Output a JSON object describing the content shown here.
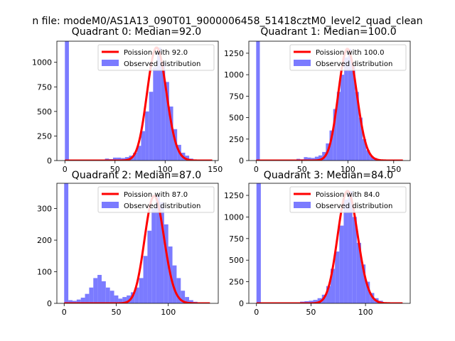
{
  "suptitle": "n file: modeM0/AS1A13_090T01_9000006458_51418cztM0_level2_quad_clean",
  "colors": {
    "hist": "#7b7bff",
    "curve": "#ff0000",
    "axis": "#000000",
    "legend_border": "#d0d0d0"
  },
  "chart_data": [
    {
      "type": "bar",
      "title": "Quadrant 0: Median=92.0",
      "xlim": [
        -8,
        153
      ],
      "ylim": [
        0,
        1215
      ],
      "xticks": [
        0,
        50,
        100,
        150
      ],
      "yticks": [
        0,
        250,
        500,
        750,
        1000
      ],
      "legend": {
        "position": "top-right",
        "curve_label": "Poission with 92.0",
        "hist_label": "Observed distribution"
      },
      "poisson_mean": 92.0,
      "curve_range": [
        0,
        147
      ],
      "bin_width": 4,
      "hist_x": [
        0,
        40,
        44,
        48,
        52,
        56,
        60,
        64,
        68,
        72,
        76,
        80,
        84,
        88,
        92,
        96,
        100,
        104,
        108,
        112,
        116,
        120,
        124,
        128
      ],
      "hist_y": [
        1215,
        20,
        15,
        30,
        30,
        25,
        35,
        50,
        80,
        150,
        300,
        500,
        700,
        950,
        1150,
        1000,
        800,
        550,
        320,
        160,
        80,
        50,
        20,
        10
      ]
    },
    {
      "type": "bar",
      "title": "Quadrant 1: Median=100.0",
      "xlim": [
        -8,
        168
      ],
      "ylim": [
        0,
        1390
      ],
      "xticks": [
        0,
        50,
        100,
        150
      ],
      "yticks": [
        0,
        250,
        500,
        750,
        1000,
        1250
      ],
      "legend": {
        "position": "top-right",
        "curve_label": "Poission with 100.0",
        "hist_label": "Observed distribution"
      },
      "poisson_mean": 100.0,
      "curve_range": [
        0,
        160
      ],
      "bin_width": 4,
      "hist_x": [
        0,
        44,
        48,
        52,
        56,
        60,
        64,
        68,
        72,
        76,
        80,
        84,
        88,
        92,
        96,
        100,
        104,
        108,
        112,
        116,
        120,
        124,
        128,
        132,
        136
      ],
      "hist_y": [
        1390,
        20,
        15,
        40,
        35,
        30,
        45,
        60,
        100,
        200,
        350,
        600,
        800,
        1000,
        1200,
        1300,
        1100,
        800,
        500,
        250,
        120,
        50,
        30,
        15,
        10
      ]
    },
    {
      "type": "bar",
      "title": "Quadrant 2: Median=87.0",
      "xlim": [
        -7,
        148
      ],
      "ylim": [
        0,
        380
      ],
      "xticks": [
        0,
        50,
        100
      ],
      "yticks": [
        0,
        100,
        200,
        300
      ],
      "legend": {
        "position": "top-right",
        "curve_label": "Poission with 87.0",
        "hist_label": "Observed distribution"
      },
      "poisson_mean": 87.0,
      "curve_range": [
        0,
        140
      ],
      "bin_width": 4,
      "hist_x": [
        0,
        4,
        8,
        12,
        16,
        20,
        24,
        28,
        32,
        36,
        40,
        44,
        48,
        52,
        56,
        60,
        64,
        68,
        72,
        76,
        80,
        84,
        88,
        92,
        96,
        100,
        104,
        108,
        112,
        116,
        120,
        124
      ],
      "hist_y": [
        380,
        10,
        8,
        12,
        18,
        30,
        50,
        80,
        90,
        70,
        50,
        40,
        25,
        15,
        20,
        25,
        35,
        50,
        80,
        150,
        230,
        300,
        340,
        320,
        250,
        180,
        120,
        80,
        40,
        20,
        10,
        5
      ]
    },
    {
      "type": "bar",
      "title": "Quadrant 3: Median=84.0",
      "xlim": [
        -7,
        141
      ],
      "ylim": [
        0,
        1390
      ],
      "xticks": [
        0,
        50,
        100
      ],
      "yticks": [
        0,
        250,
        500,
        750,
        1000,
        1250
      ],
      "legend": {
        "position": "top-right",
        "curve_label": "Poission with 84.0",
        "hist_label": "Observed distribution"
      },
      "poisson_mean": 84.0,
      "curve_range": [
        0,
        134
      ],
      "bin_width": 4,
      "hist_x": [
        0,
        40,
        44,
        48,
        52,
        56,
        60,
        64,
        68,
        72,
        76,
        80,
        84,
        88,
        92,
        96,
        100,
        104,
        108,
        112,
        116
      ],
      "hist_y": [
        1390,
        20,
        25,
        30,
        40,
        60,
        100,
        200,
        400,
        600,
        900,
        1200,
        1300,
        1000,
        700,
        450,
        250,
        120,
        60,
        30,
        10
      ]
    }
  ]
}
